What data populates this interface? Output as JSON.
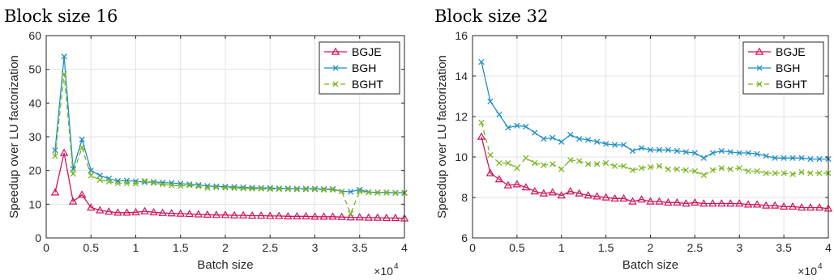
{
  "chart_data": [
    {
      "type": "line",
      "title": "Block size 16",
      "xlabel": "Batch size",
      "ylabel": "Speedup over LU factorization",
      "x_multiplier": "×10",
      "x_multiplier_exp": "4",
      "xlim": [
        0,
        4
      ],
      "ylim": [
        0,
        60
      ],
      "xticks": [
        0,
        0.5,
        1,
        1.5,
        2,
        2.5,
        3,
        3.5,
        4
      ],
      "xtick_labels": [
        "0",
        "0.5",
        "1",
        "1.5",
        "2",
        "2.5",
        "3",
        "3.5",
        "4"
      ],
      "yticks": [
        0,
        10,
        20,
        30,
        40,
        50,
        60
      ],
      "ytick_labels": [
        "0",
        "10",
        "20",
        "30",
        "40",
        "50",
        "60"
      ],
      "grid": true,
      "legend_position": "top-right",
      "x": [
        0.1,
        0.2,
        0.3,
        0.4,
        0.5,
        0.6,
        0.7,
        0.8,
        0.9,
        1.0,
        1.1,
        1.2,
        1.3,
        1.4,
        1.5,
        1.6,
        1.7,
        1.8,
        1.9,
        2.0,
        2.1,
        2.2,
        2.3,
        2.4,
        2.5,
        2.6,
        2.7,
        2.8,
        2.9,
        3.0,
        3.1,
        3.2,
        3.3,
        3.4,
        3.5,
        3.6,
        3.7,
        3.8,
        3.9,
        4.0
      ],
      "series": [
        {
          "name": "BGJE",
          "color": "#d1145a",
          "marker": "triangle",
          "dashed": false,
          "values": [
            13.5,
            25.2,
            10.8,
            12.8,
            9.0,
            8.2,
            7.8,
            7.5,
            7.5,
            7.6,
            7.9,
            7.6,
            7.4,
            7.3,
            7.2,
            7.1,
            7.0,
            6.9,
            6.8,
            6.8,
            6.7,
            6.7,
            6.6,
            6.6,
            6.5,
            6.5,
            6.4,
            6.4,
            6.4,
            6.3,
            6.3,
            6.3,
            6.2,
            6.1,
            6.1,
            6.0,
            6.0,
            5.9,
            5.9,
            5.8
          ]
        },
        {
          "name": "BGH",
          "color": "#1f8fc4",
          "marker": "x",
          "dashed": false,
          "values": [
            26.0,
            53.8,
            20.5,
            29.2,
            20.0,
            18.5,
            17.6,
            16.9,
            17.0,
            16.8,
            16.5,
            16.6,
            16.4,
            16.3,
            16.1,
            15.9,
            15.7,
            15.4,
            15.3,
            15.2,
            15.1,
            15.0,
            14.9,
            14.8,
            14.8,
            14.7,
            14.7,
            14.6,
            14.6,
            14.6,
            14.5,
            14.5,
            13.8,
            13.7,
            14.3,
            13.6,
            13.5,
            13.5,
            13.4,
            13.4
          ]
        },
        {
          "name": "BGHT",
          "color": "#7ab51d",
          "marker": "x",
          "dashed": true,
          "values": [
            24.3,
            48.6,
            19.0,
            26.8,
            18.5,
            17.2,
            16.7,
            16.2,
            16.2,
            16.1,
            16.9,
            16.3,
            15.9,
            15.6,
            15.4,
            15.6,
            15.3,
            14.8,
            15.0,
            14.9,
            14.8,
            14.7,
            14.6,
            14.6,
            14.5,
            14.5,
            14.5,
            14.4,
            14.4,
            14.4,
            14.3,
            14.3,
            13.8,
            7.2,
            13.8,
            13.5,
            13.4,
            13.4,
            13.3,
            13.3
          ]
        }
      ]
    },
    {
      "type": "line",
      "title": "Block size 32",
      "xlabel": "Batch size",
      "ylabel": "Speedup over LU factorization",
      "x_multiplier": "×10",
      "x_multiplier_exp": "4",
      "xlim": [
        0,
        4
      ],
      "ylim": [
        6,
        16
      ],
      "xticks": [
        0,
        0.5,
        1,
        1.5,
        2,
        2.5,
        3,
        3.5,
        4
      ],
      "xtick_labels": [
        "0",
        "0.5",
        "1",
        "1.5",
        "2",
        "2.5",
        "3",
        "3.5",
        "4"
      ],
      "yticks": [
        6,
        8,
        10,
        12,
        14,
        16
      ],
      "ytick_labels": [
        "6",
        "8",
        "10",
        "12",
        "14",
        "16"
      ],
      "grid": true,
      "legend_position": "top-right",
      "x": [
        0.1,
        0.2,
        0.3,
        0.4,
        0.5,
        0.6,
        0.7,
        0.8,
        0.9,
        1.0,
        1.1,
        1.2,
        1.3,
        1.4,
        1.5,
        1.6,
        1.7,
        1.8,
        1.9,
        2.0,
        2.1,
        2.2,
        2.3,
        2.4,
        2.5,
        2.6,
        2.7,
        2.8,
        2.9,
        3.0,
        3.1,
        3.2,
        3.3,
        3.4,
        3.5,
        3.6,
        3.7,
        3.8,
        3.9,
        4.0
      ],
      "series": [
        {
          "name": "BGJE",
          "color": "#d1145a",
          "marker": "triangle",
          "dashed": false,
          "values": [
            11.0,
            9.2,
            8.9,
            8.6,
            8.65,
            8.5,
            8.3,
            8.2,
            8.25,
            8.1,
            8.3,
            8.2,
            8.1,
            8.05,
            8.0,
            7.95,
            7.95,
            7.8,
            7.9,
            7.8,
            7.8,
            7.75,
            7.75,
            7.7,
            7.75,
            7.7,
            7.7,
            7.7,
            7.7,
            7.7,
            7.65,
            7.65,
            7.6,
            7.6,
            7.55,
            7.55,
            7.5,
            7.5,
            7.5,
            7.45
          ]
        },
        {
          "name": "BGH",
          "color": "#1f8fc4",
          "marker": "x",
          "dashed": false,
          "values": [
            14.7,
            12.75,
            12.1,
            11.45,
            11.55,
            11.5,
            11.2,
            10.9,
            10.95,
            10.75,
            11.1,
            10.9,
            10.85,
            10.75,
            10.65,
            10.6,
            10.6,
            10.3,
            10.45,
            10.35,
            10.35,
            10.35,
            10.3,
            10.25,
            10.2,
            9.95,
            10.2,
            10.3,
            10.25,
            10.2,
            10.2,
            10.15,
            10.05,
            9.95,
            9.95,
            9.95,
            9.95,
            9.9,
            9.9,
            9.9
          ]
        },
        {
          "name": "BGHT",
          "color": "#7ab51d",
          "marker": "x",
          "dashed": true,
          "values": [
            11.7,
            10.1,
            9.7,
            9.7,
            9.45,
            9.95,
            9.7,
            9.6,
            9.65,
            9.4,
            9.85,
            9.8,
            9.65,
            9.65,
            9.7,
            9.55,
            9.55,
            9.35,
            9.45,
            9.5,
            9.55,
            9.4,
            9.4,
            9.35,
            9.3,
            9.1,
            9.35,
            9.45,
            9.4,
            9.45,
            9.3,
            9.3,
            9.2,
            9.2,
            9.2,
            9.15,
            9.25,
            9.2,
            9.2,
            9.2
          ]
        }
      ]
    }
  ]
}
